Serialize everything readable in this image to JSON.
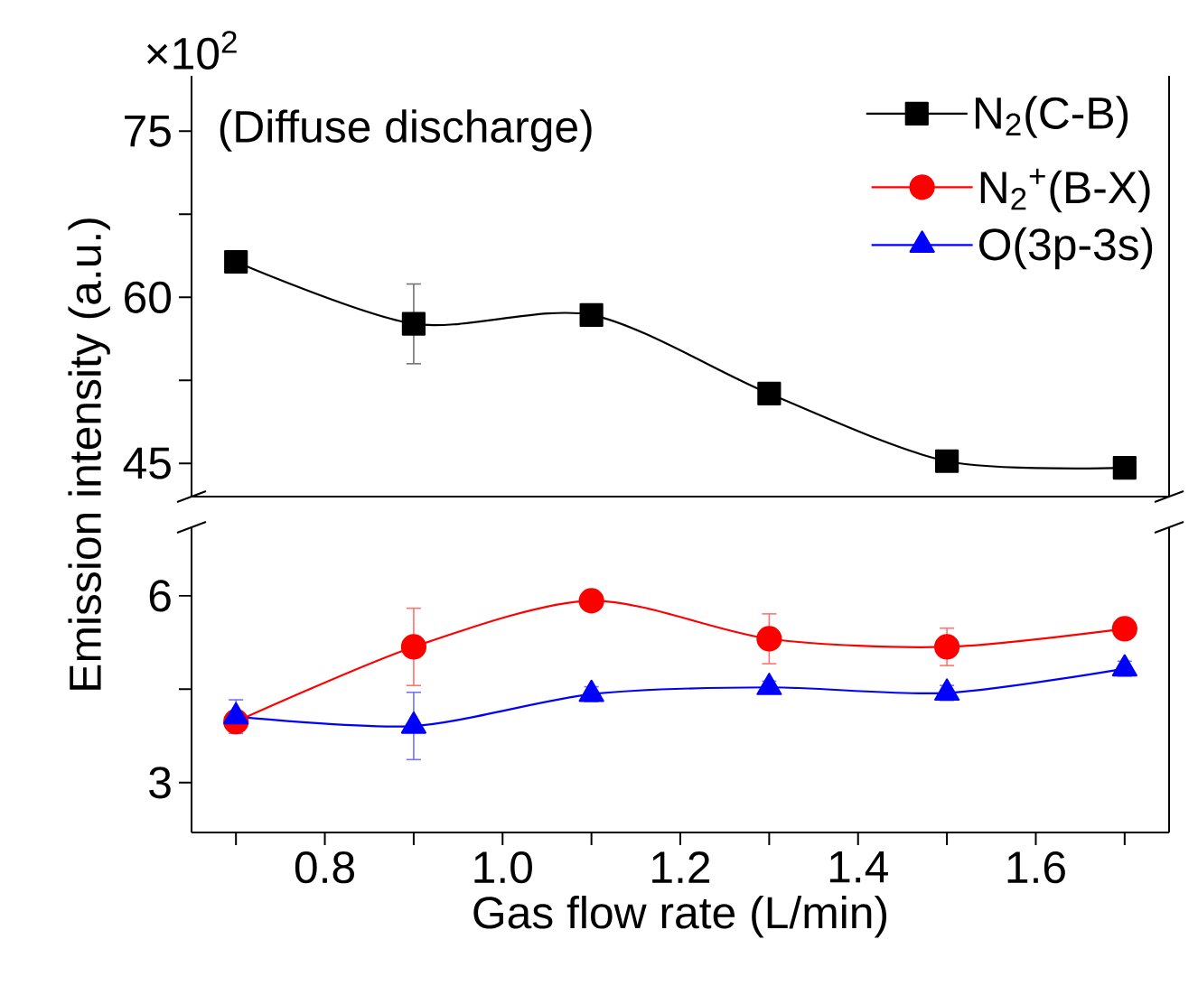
{
  "chart_data": [
    {
      "type": "line",
      "ylabel": "Emission intensity (a.u.)",
      "annotations": [
        "×10$^{2}$",
        "(Diffuse discharge)"
      ],
      "x": [
        0.7,
        0.9,
        1.1,
        1.3,
        1.5,
        1.7
      ],
      "xlim": [
        0.65,
        1.75
      ],
      "ylim": [
        42,
        80
      ],
      "yticks": [
        45,
        {
          "value": 52.5,
          "label": null
        },
        60,
        {
          "value": 67.5,
          "label": null
        },
        75
      ],
      "tick_labels": "y",
      "legend": "top right",
      "line_style": "solid",
      "series": [
        {
          "name": "N$_{2}$(C-B)",
          "color": "#000000",
          "marker": "square",
          "values": [
            63.2,
            57.6,
            58.4,
            51.3,
            45.2,
            44.6
          ],
          "errors": [
            null,
            3.6,
            null,
            null,
            null,
            0.5
          ]
        }
      ]
    },
    {
      "type": "line",
      "xlabel": "Gas flow rate (L/min)",
      "x": [
        0.7,
        0.9,
        1.1,
        1.3,
        1.5,
        1.7
      ],
      "xlim": [
        0.65,
        1.75
      ],
      "ylim": [
        2.2,
        7.1
      ],
      "xticks": [
        {
          "value": 0.7,
          "label": null
        },
        0.8,
        {
          "value": 0.9,
          "label": null
        },
        {
          "value": 1.0,
          "label": "1.0"
        },
        {
          "value": 1.1,
          "label": null
        },
        1.2,
        {
          "value": 1.3,
          "label": null
        },
        1.4,
        {
          "value": 1.5,
          "label": null
        },
        1.6,
        {
          "value": 1.7,
          "label": null
        }
      ],
      "yticks": [
        3,
        {
          "value": 4.5,
          "label": null
        },
        6
      ],
      "line_style": "solid",
      "legend": "top right",
      "series": [
        {
          "name": "N$_{2}$$^{+}$(B-X)",
          "color": "#ff0000",
          "marker": "circle",
          "values": [
            3.98,
            5.18,
            5.92,
            5.31,
            5.18,
            5.47
          ],
          "errors": [
            null,
            0.62,
            null,
            0.4,
            0.3,
            null
          ]
        },
        {
          "name": "O(3p-3s)",
          "color": "#0000ff",
          "marker": "triangle",
          "values": [
            4.06,
            3.91,
            4.42,
            4.53,
            4.44,
            4.83
          ],
          "errors": [
            0.27,
            0.54,
            0.12,
            0.1,
            0.12,
            0.12
          ]
        }
      ]
    }
  ]
}
